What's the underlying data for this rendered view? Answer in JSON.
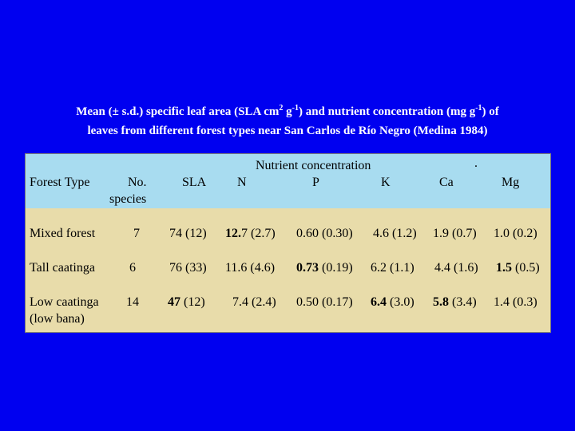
{
  "caption": {
    "line1_pre": "Mean (± s.d.) specific leaf area (SLA cm",
    "sup1": "2",
    "line1_mid1": " g",
    "sup2": "-1",
    "line1_mid2": ") and nutrient concentration (mg g",
    "sup3": "-1",
    "line1_post": ") of",
    "line2": "leaves from different forest types near San Carlos de Río Negro (Medina 1984)"
  },
  "header": {
    "forest_type": "Forest Type",
    "no_line1": "No.",
    "no_line2": "species",
    "sla": "SLA",
    "nutrient": "Nutrient concentration",
    "dot": ".",
    "n": "N",
    "p": "P",
    "k": "K",
    "ca": "Ca",
    "mg": "Mg"
  },
  "rows": [
    {
      "name": "Mixed forest",
      "name2": "",
      "species": "7",
      "sla": "74 (12)",
      "n_bold": "12.",
      "n_rest": "7 (2.7)",
      "p_bold": "",
      "p_rest": "0.60 (0.30)",
      "k_bold": "",
      "k_rest": "4.6 (1.2)",
      "ca_bold": "",
      "ca_rest": "1.9 (0.7)",
      "mg_bold": "",
      "mg_rest": "1.0 (0.2)"
    },
    {
      "name": "Tall caatinga",
      "name2": "",
      "species": "6",
      "sla": "76 (33)",
      "n_bold": "",
      "n_rest": "11.6 (4.6)",
      "p_bold": "0.73",
      "p_rest": " (0.19)",
      "k_bold": "",
      "k_rest": "6.2 (1.1)",
      "ca_bold": "",
      "ca_rest": "4.4 (1.6)",
      "mg_bold": "1.5",
      "mg_rest": " (0.5)"
    },
    {
      "name": "Low caatinga",
      "name2": "(low bana)",
      "species": "14",
      "sla_bold": "47",
      "sla_rest": " (12)",
      "n_bold": "",
      "n_rest": "7.4 (2.4)",
      "p_bold": "",
      "p_rest": "0.50 (0.17)",
      "k_bold": "6.4",
      "k_rest": " (3.0)",
      "ca_bold": "5.8",
      "ca_rest": " (3.4)",
      "mg_bold": "",
      "mg_rest": "1.4 (0.3)"
    }
  ]
}
